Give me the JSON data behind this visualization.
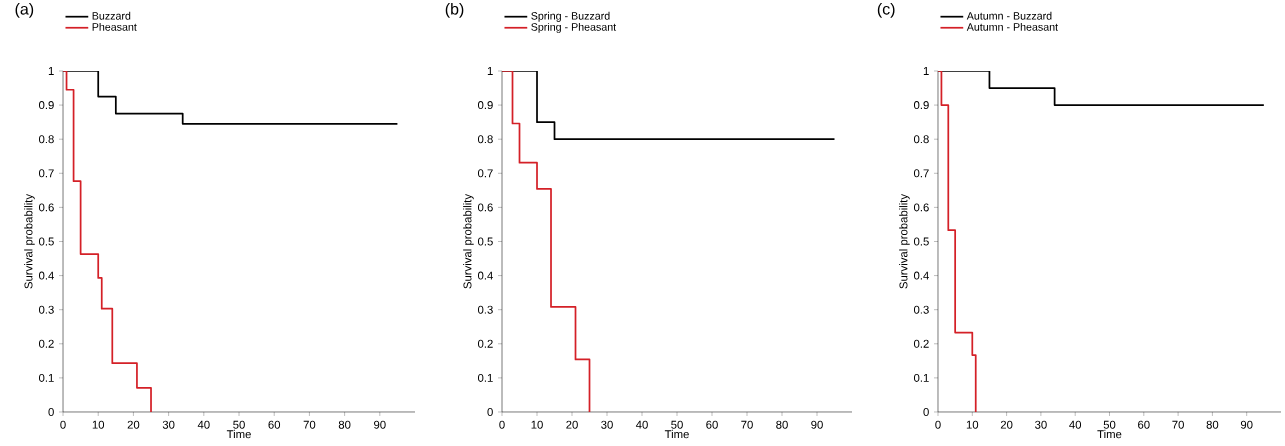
{
  "chart_data": [
    {
      "type": "step",
      "title": "(a)",
      "xlabel": "Time",
      "ylabel": "Survival probability",
      "legend": "top left",
      "xlim": [
        0,
        100
      ],
      "ylim": [
        0,
        1
      ],
      "xticks": [
        0,
        10,
        20,
        30,
        40,
        50,
        60,
        70,
        80,
        90
      ],
      "yticks": [
        0,
        0.1,
        0.2,
        0.3,
        0.4,
        0.5,
        0.6,
        0.7,
        0.8,
        0.9,
        1
      ],
      "series": [
        {
          "name": "Buzzard",
          "color": "#000000",
          "x": [
            0,
            10,
            15,
            34,
            95
          ],
          "values": [
            1,
            0.925,
            0.875,
            0.845,
            0.845
          ]
        },
        {
          "name": "Pheasant",
          "color": "#d42027",
          "x": [
            0,
            1,
            3,
            5,
            10,
            11,
            14,
            21,
            25
          ],
          "values": [
            1,
            0.945,
            0.677,
            0.463,
            0.393,
            0.303,
            0.143,
            0.071,
            0
          ]
        }
      ]
    },
    {
      "type": "step",
      "title": "(b)",
      "xlabel": "Time",
      "ylabel": "Survival probability",
      "legend": "top left",
      "xlim": [
        0,
        100
      ],
      "ylim": [
        0,
        1
      ],
      "xticks": [
        0,
        10,
        20,
        30,
        40,
        50,
        60,
        70,
        80,
        90
      ],
      "yticks": [
        0,
        0.1,
        0.2,
        0.3,
        0.4,
        0.5,
        0.6,
        0.7,
        0.8,
        0.9,
        1
      ],
      "series": [
        {
          "name": "Spring - Buzzard",
          "color": "#000000",
          "x": [
            0,
            10,
            15,
            95
          ],
          "values": [
            1,
            0.85,
            0.8,
            0.8
          ]
        },
        {
          "name": "Spring - Pheasant",
          "color": "#d42027",
          "x": [
            0,
            3,
            5,
            10,
            14,
            21,
            25
          ],
          "values": [
            1,
            0.846,
            0.731,
            0.654,
            0.308,
            0.154,
            0
          ]
        }
      ]
    },
    {
      "type": "step",
      "title": "(c)",
      "xlabel": "Time",
      "ylabel": "Survival probability",
      "legend": "top left",
      "xlim": [
        0,
        100
      ],
      "ylim": [
        0,
        1
      ],
      "xticks": [
        0,
        10,
        20,
        30,
        40,
        50,
        60,
        70,
        80,
        90
      ],
      "yticks": [
        0,
        0.1,
        0.2,
        0.3,
        0.4,
        0.5,
        0.6,
        0.7,
        0.8,
        0.9,
        1
      ],
      "series": [
        {
          "name": "Autumn - Buzzard",
          "color": "#000000",
          "x": [
            0,
            15,
            34,
            95
          ],
          "values": [
            1,
            0.95,
            0.9,
            0.9
          ]
        },
        {
          "name": "Autumn - Pheasant",
          "color": "#d42027",
          "x": [
            0,
            1,
            3,
            5,
            10,
            11
          ],
          "values": [
            1,
            0.9,
            0.533,
            0.233,
            0.167,
            0
          ]
        }
      ]
    }
  ]
}
